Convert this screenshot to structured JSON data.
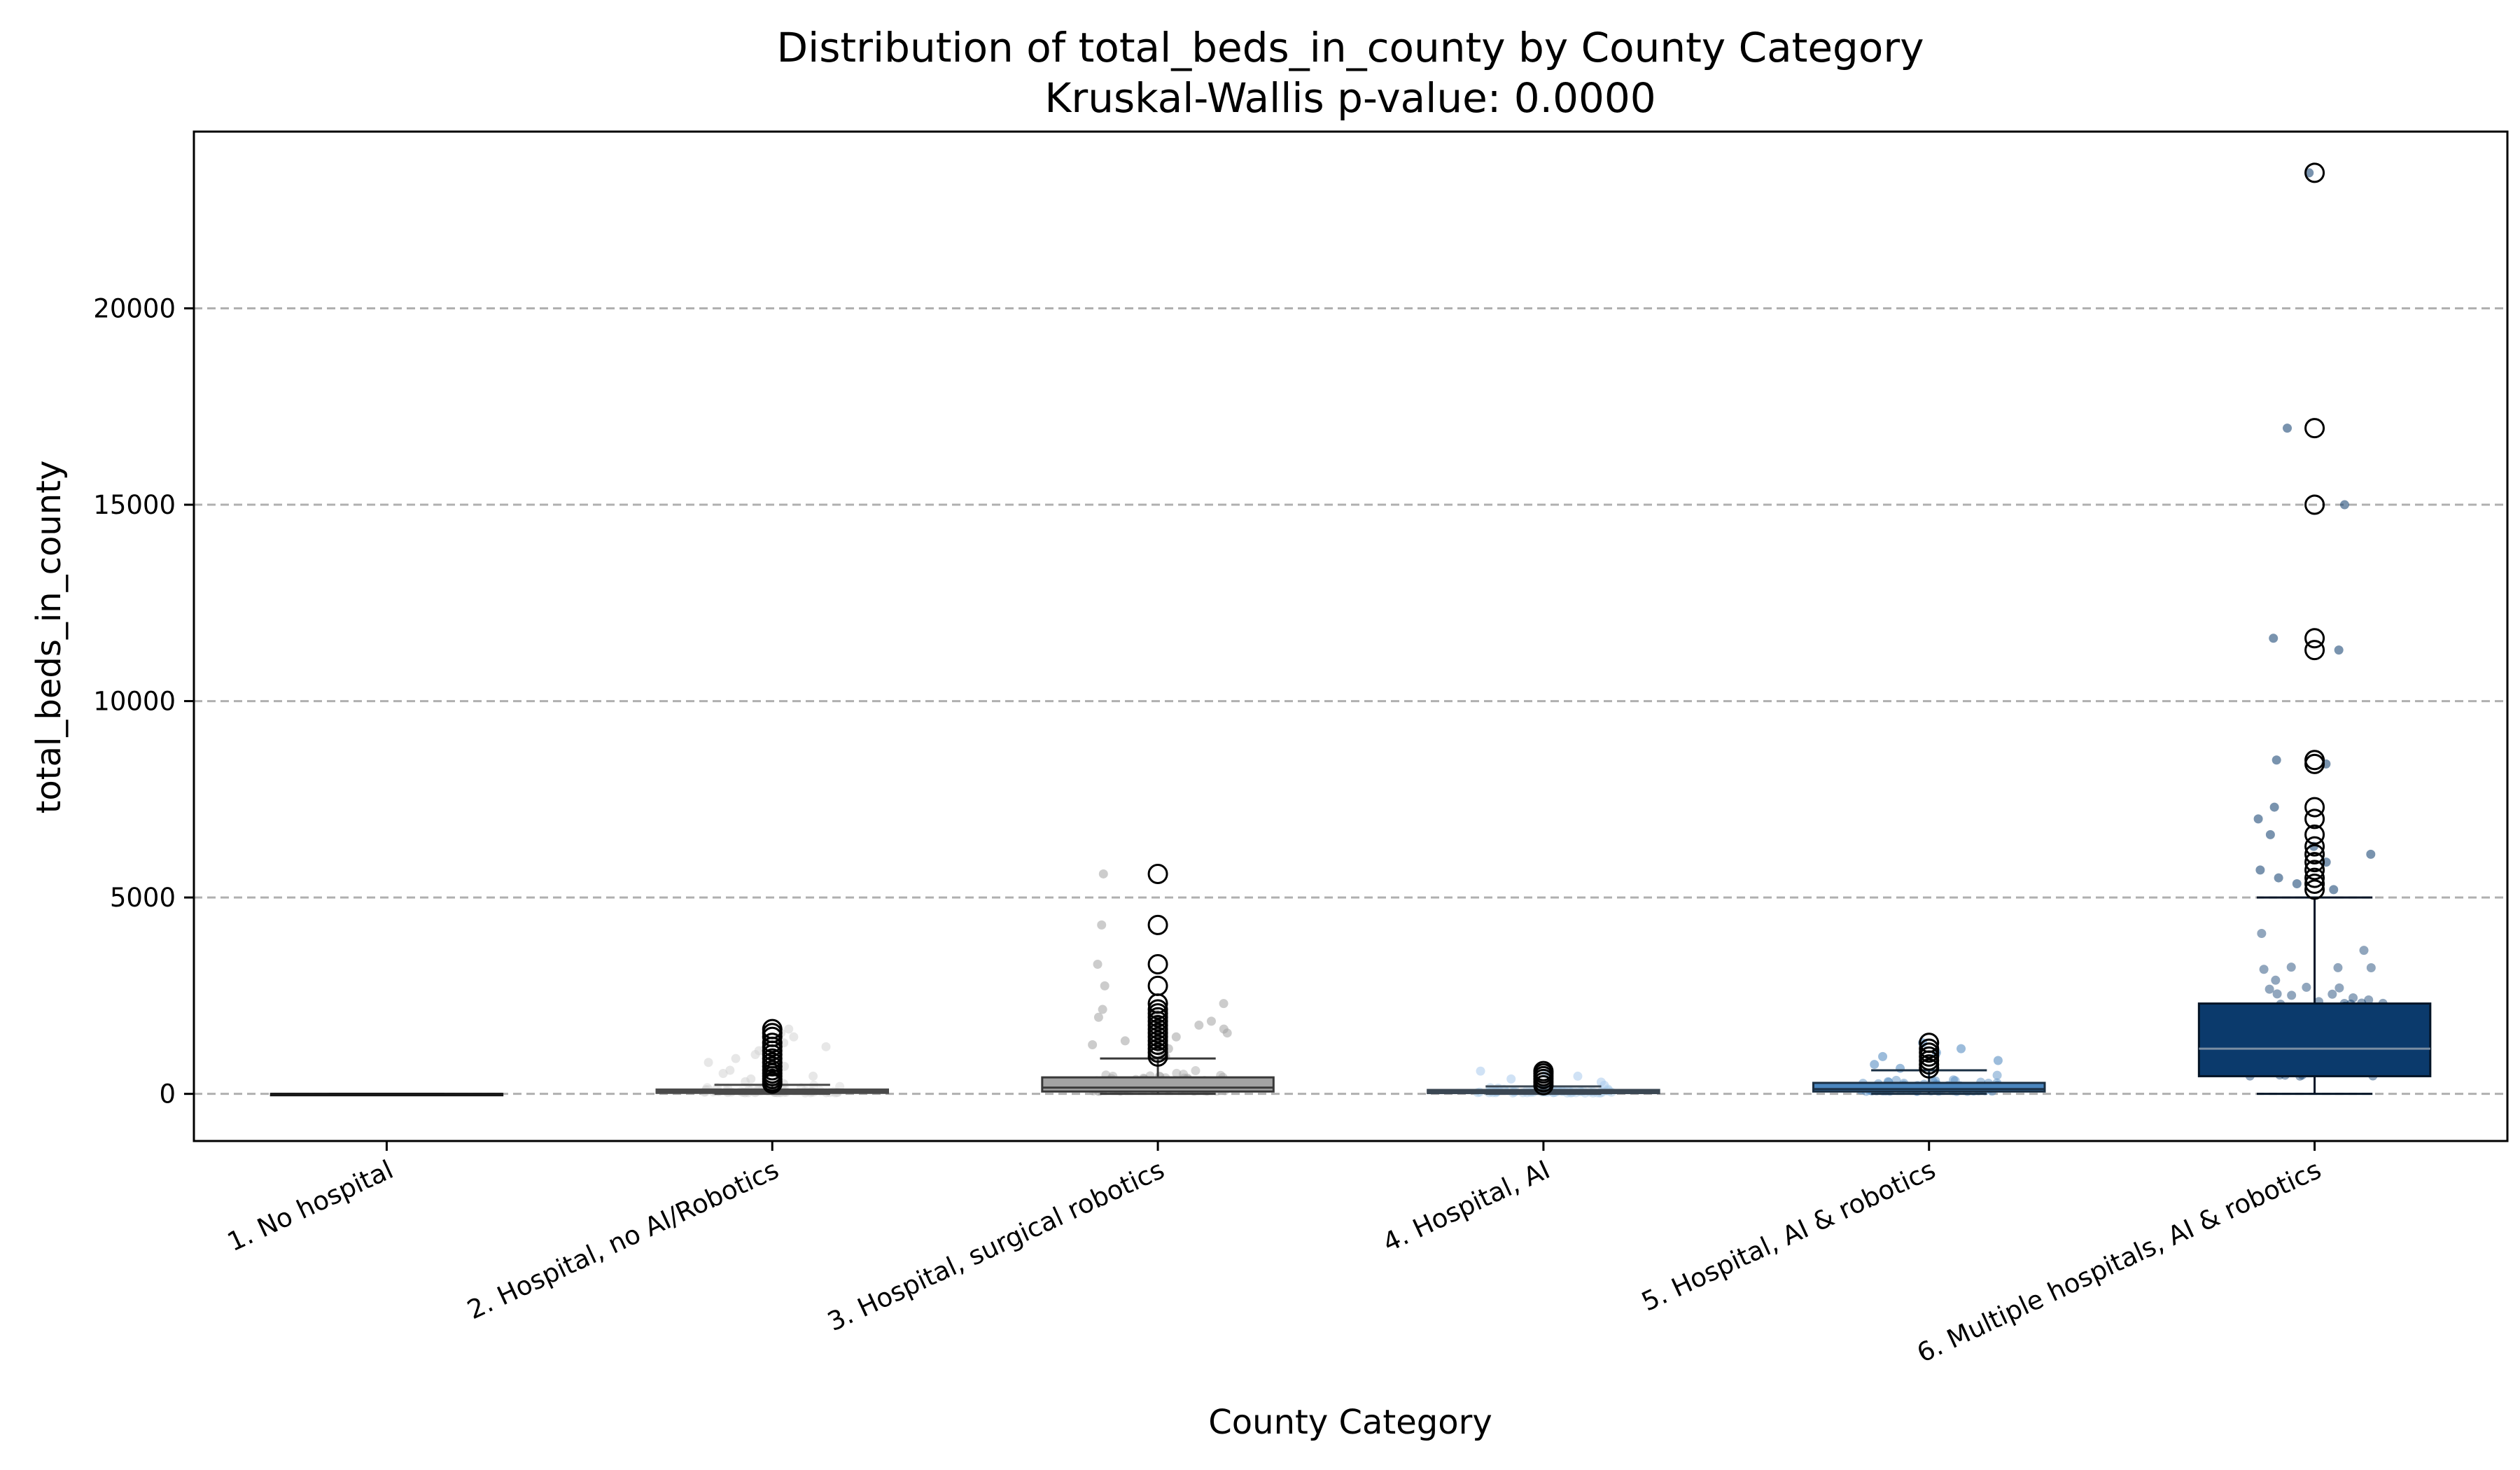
{
  "chart_data": {
    "type": "box",
    "title": "Distribution of total_beds_in_county by County Category",
    "subtitle": "Kruskal-Wallis p-value: 0.0000",
    "xlabel": "County Category",
    "ylabel": "total_beds_in_county",
    "ylim": [
      -1200,
      24500
    ],
    "yticks": [
      0,
      5000,
      10000,
      15000,
      20000
    ],
    "ytick_labels": [
      "0",
      "5000",
      "10000",
      "15000",
      "20000"
    ],
    "grid": "horizontal dashed",
    "categories": [
      "1. No hospital",
      "2. Hospital, no AI/Robotics",
      "3. Hospital, surgical robotics",
      "4. Hospital, AI",
      "5. Hospital, AI & robotics",
      "6. Multiple hospitals, AI & robotics"
    ],
    "series": [
      {
        "color": "#ffffff",
        "q1": 0,
        "median": 0,
        "q3": 0,
        "whisker_low": 0,
        "whisker_high": 0,
        "outliers": []
      },
      {
        "color": "#d4d4d4",
        "q1": 25,
        "median": 60,
        "q3": 110,
        "whisker_low": 0,
        "whisker_high": 230,
        "outliers": [
          260,
          310,
          380,
          450,
          520,
          600,
          700,
          800,
          900,
          1000,
          1100,
          1200,
          1300,
          1450,
          1550,
          1650
        ]
      },
      {
        "color": "#a3a3a3",
        "q1": 60,
        "median": 160,
        "q3": 420,
        "whisker_low": 0,
        "whisker_high": 900,
        "outliers": [
          950,
          1050,
          1150,
          1250,
          1350,
          1450,
          1550,
          1650,
          1750,
          1850,
          1950,
          2050,
          2150,
          2300,
          2750,
          3300,
          4300,
          5600
        ]
      },
      {
        "color": "#a9cbec",
        "q1": 20,
        "median": 50,
        "q3": 100,
        "whisker_low": 0,
        "whisker_high": 190,
        "outliers": [
          220,
          300,
          380,
          450,
          520,
          580
        ]
      },
      {
        "color": "#4a85be",
        "q1": 60,
        "median": 120,
        "q3": 280,
        "whisker_low": 0,
        "whisker_high": 600,
        "outliers": [
          650,
          750,
          850,
          950,
          1050,
          1150,
          1300
        ]
      },
      {
        "color": "#0b3a6c",
        "q1": 450,
        "median": 1150,
        "q3": 2300,
        "whisker_low": 0,
        "whisker_high": 5000,
        "outliers": [
          5200,
          5350,
          5500,
          5700,
          5900,
          6100,
          6300,
          6600,
          7000,
          7300,
          8400,
          8500,
          11300,
          11600,
          15000,
          16950,
          23450
        ]
      }
    ]
  }
}
